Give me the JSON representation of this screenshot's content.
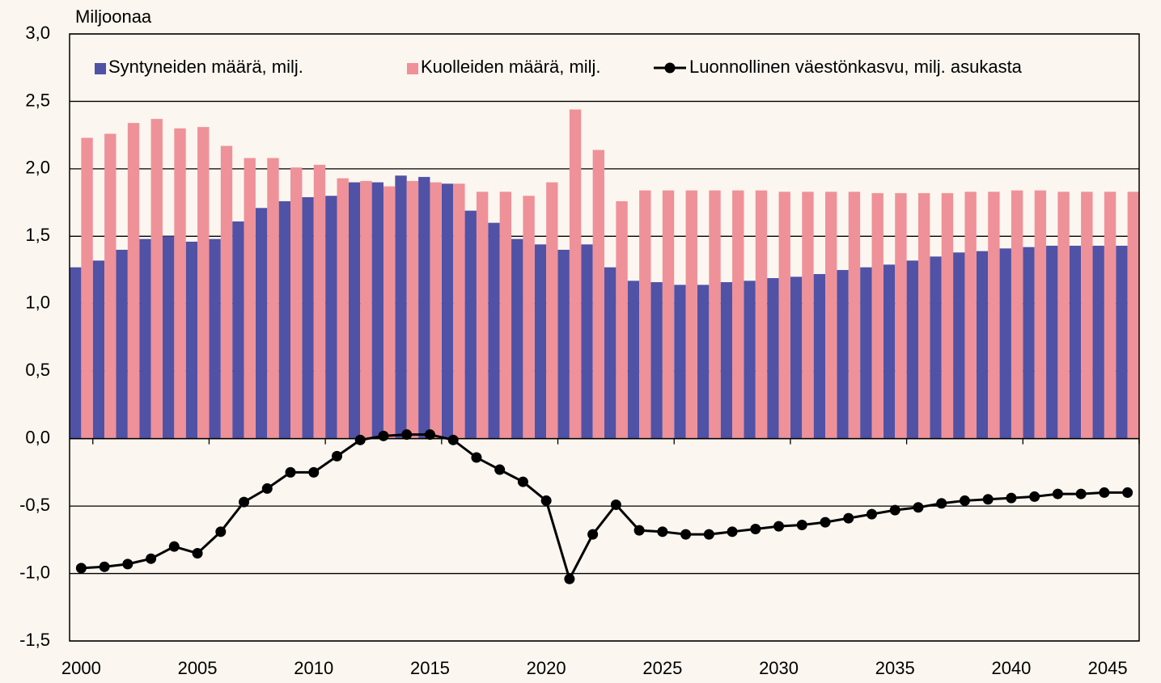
{
  "chart_data": {
    "type": "bar",
    "y_label": "Miljoonaa",
    "x": [
      2000,
      2001,
      2002,
      2003,
      2004,
      2005,
      2006,
      2007,
      2008,
      2009,
      2010,
      2011,
      2012,
      2013,
      2014,
      2015,
      2016,
      2017,
      2018,
      2019,
      2020,
      2021,
      2022,
      2023,
      2024,
      2025,
      2026,
      2027,
      2028,
      2029,
      2030,
      2031,
      2032,
      2033,
      2034,
      2035,
      2036,
      2037,
      2038,
      2039,
      2040,
      2041,
      2042,
      2043,
      2044,
      2045
    ],
    "xlim": [
      1999.5,
      2045.5
    ],
    "xticks": [
      2000,
      2005,
      2010,
      2015,
      2020,
      2025,
      2030,
      2035,
      2040,
      2045
    ],
    "ylim": [
      -1.5,
      3
    ],
    "yticks": [
      {
        "value": -1.5,
        "label": "-1,5"
      },
      {
        "value": -1,
        "label": "-1,0"
      },
      {
        "value": -0.5,
        "label": "-0,5"
      },
      {
        "value": 0,
        "label": "0,0"
      },
      {
        "value": 0.5,
        "label": "0,5"
      },
      {
        "value": 1,
        "label": "1,0"
      },
      {
        "value": 1.5,
        "label": "1,5"
      },
      {
        "value": 2,
        "label": "2,0"
      },
      {
        "value": 2.5,
        "label": "2,5"
      },
      {
        "value": 3,
        "label": "3,0"
      }
    ],
    "grid": true,
    "legend": "top",
    "series": [
      {
        "name": "Syntyneiden määrä, milj.",
        "color": "#5052a6",
        "values": [
          1.27,
          1.32,
          1.4,
          1.48,
          1.5,
          1.46,
          1.48,
          1.61,
          1.71,
          1.76,
          1.79,
          1.8,
          1.9,
          1.9,
          1.95,
          1.94,
          1.89,
          1.69,
          1.6,
          1.48,
          1.44,
          1.4,
          1.44,
          1.27,
          1.17,
          1.16,
          1.14,
          1.14,
          1.16,
          1.17,
          1.19,
          1.2,
          1.22,
          1.25,
          1.27,
          1.29,
          1.32,
          1.35,
          1.38,
          1.39,
          1.41,
          1.42,
          1.43,
          1.43,
          1.43,
          1.43
        ]
      },
      {
        "name": "Kuolleiden määrä, milj.",
        "color": "#ef9198",
        "values": [
          2.23,
          2.26,
          2.34,
          2.37,
          2.3,
          2.31,
          2.17,
          2.08,
          2.08,
          2.01,
          2.03,
          1.93,
          1.91,
          1.87,
          1.91,
          1.9,
          1.89,
          1.83,
          1.83,
          1.8,
          1.9,
          2.44,
          2.14,
          1.76,
          1.84,
          1.84,
          1.84,
          1.84,
          1.84,
          1.84,
          1.83,
          1.83,
          1.83,
          1.83,
          1.82,
          1.82,
          1.82,
          1.82,
          1.83,
          1.83,
          1.84,
          1.84,
          1.83,
          1.83,
          1.83,
          1.83
        ]
      },
      {
        "name": "Luonnollinen väestönkasvu, milj. asukasta",
        "color": "#000000",
        "type": "line",
        "values": [
          -0.96,
          -0.95,
          -0.93,
          -0.89,
          -0.8,
          -0.85,
          -0.69,
          -0.47,
          -0.37,
          -0.25,
          -0.25,
          -0.13,
          -0.01,
          0.02,
          0.03,
          0.03,
          -0.01,
          -0.14,
          -0.23,
          -0.32,
          -0.46,
          -1.04,
          -0.71,
          -0.49,
          -0.68,
          -0.69,
          -0.71,
          -0.71,
          -0.69,
          -0.67,
          -0.65,
          -0.64,
          -0.62,
          -0.59,
          -0.56,
          -0.53,
          -0.51,
          -0.48,
          -0.46,
          -0.45,
          -0.44,
          -0.43,
          -0.41,
          -0.41,
          -0.4,
          -0.4
        ]
      }
    ]
  }
}
